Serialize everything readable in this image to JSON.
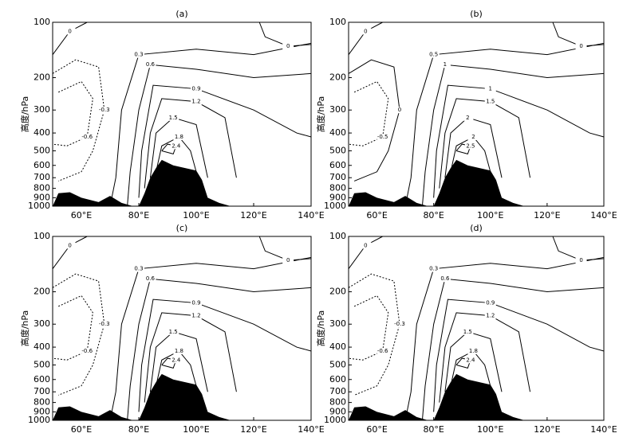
{
  "chart_data": [
    {
      "type": "contour",
      "title": "(a)",
      "ylabel": "高度/hPa",
      "log_y": true,
      "ylim": [
        1000,
        100
      ],
      "xlim": [
        50,
        140
      ],
      "yticks": [
        100,
        200,
        300,
        400,
        500,
        600,
        700,
        800,
        900,
        1000
      ],
      "xticks": [
        {
          "value": 60,
          "label": "60°E"
        },
        {
          "value": 80,
          "label": "80°E"
        },
        {
          "value": 100,
          "label": "100°E"
        },
        {
          "value": 120,
          "label": "120°E"
        },
        {
          "value": 140,
          "label": "140°E"
        }
      ],
      "contour_levels": [
        -0.6,
        -0.3,
        0,
        0.3,
        0.6,
        0.9,
        1.2,
        1.5,
        1.8,
        2.4
      ]
    },
    {
      "type": "contour",
      "title": "(b)",
      "ylabel": "高度/hPa",
      "log_y": true,
      "ylim": [
        1000,
        100
      ],
      "xlim": [
        50,
        140
      ],
      "yticks": [
        100,
        200,
        300,
        400,
        500,
        600,
        700,
        800,
        900,
        1000
      ],
      "xticks": [
        {
          "value": 60,
          "label": "60°E"
        },
        {
          "value": 80,
          "label": "80°E"
        },
        {
          "value": 100,
          "label": "100°E"
        },
        {
          "value": 120,
          "label": "120°E"
        },
        {
          "value": 140,
          "label": "140°E"
        }
      ],
      "contour_levels": [
        -0.5,
        0,
        0.5,
        1,
        1.5,
        2,
        2.5
      ]
    },
    {
      "type": "contour",
      "title": "(c)",
      "ylabel": "高度/hPa",
      "log_y": true,
      "ylim": [
        1000,
        100
      ],
      "xlim": [
        50,
        140
      ],
      "yticks": [
        100,
        200,
        300,
        400,
        500,
        600,
        700,
        800,
        900,
        1000
      ],
      "xticks": [
        {
          "value": 60,
          "label": "60°E"
        },
        {
          "value": 80,
          "label": "80°E"
        },
        {
          "value": 100,
          "label": "100°E"
        },
        {
          "value": 120,
          "label": "120°E"
        },
        {
          "value": 140,
          "label": "140°E"
        }
      ],
      "contour_levels": [
        -0.6,
        -0.3,
        0,
        0.3,
        0.6,
        0.9,
        1.2,
        1.5,
        1.8,
        2.4
      ]
    },
    {
      "type": "contour",
      "title": "(d)",
      "ylabel": "高度/hPa",
      "log_y": true,
      "ylim": [
        1000,
        100
      ],
      "xlim": [
        50,
        140
      ],
      "yticks": [
        100,
        200,
        300,
        400,
        500,
        600,
        700,
        800,
        900,
        1000
      ],
      "xticks": [
        {
          "value": 60,
          "label": "60°E"
        },
        {
          "value": 80,
          "label": "80°E"
        },
        {
          "value": 100,
          "label": "100°E"
        },
        {
          "value": 120,
          "label": "120°E"
        },
        {
          "value": 140,
          "label": "140°E"
        }
      ],
      "contour_levels": [
        -0.6,
        -0.3,
        0,
        0.3,
        0.6,
        0.9,
        1.2,
        1.5,
        1.8,
        2.4
      ]
    }
  ]
}
